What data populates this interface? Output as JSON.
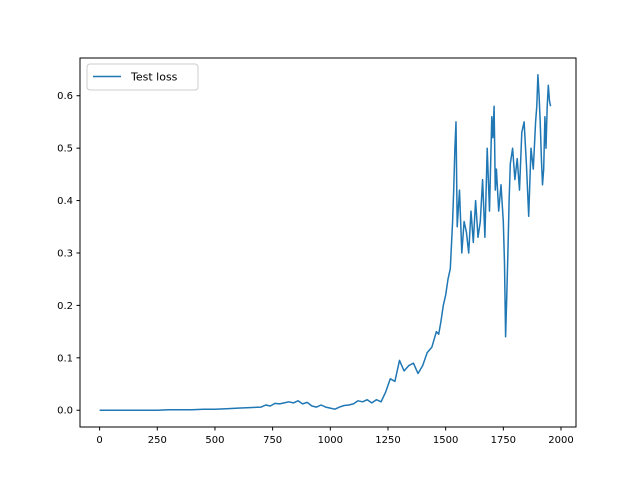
{
  "chart_data": {
    "type": "line",
    "title": "",
    "xlabel": "",
    "ylabel": "",
    "xlim": [
      -85,
      2065
    ],
    "ylim": [
      -0.032,
      0.672
    ],
    "xticks": [
      0,
      250,
      500,
      750,
      1000,
      1250,
      1500,
      1750,
      2000
    ],
    "yticks": [
      0.0,
      0.1,
      0.2,
      0.3,
      0.4,
      0.5,
      0.6
    ],
    "xtick_labels": [
      "0",
      "250",
      "500",
      "750",
      "1000",
      "1250",
      "1500",
      "1750",
      "2000"
    ],
    "ytick_labels": [
      "0.0",
      "0.1",
      "0.2",
      "0.3",
      "0.4",
      "0.5",
      "0.6"
    ],
    "grid": false,
    "legend": {
      "position": "upper-left"
    },
    "series": [
      {
        "name": "Test loss",
        "color": "#1f77b4",
        "x": [
          0,
          50,
          100,
          150,
          200,
          250,
          300,
          350,
          400,
          450,
          500,
          550,
          600,
          650,
          700,
          720,
          740,
          760,
          780,
          800,
          820,
          840,
          860,
          880,
          900,
          920,
          940,
          960,
          980,
          1000,
          1020,
          1040,
          1060,
          1080,
          1100,
          1120,
          1140,
          1160,
          1180,
          1200,
          1220,
          1240,
          1260,
          1280,
          1300,
          1320,
          1340,
          1360,
          1380,
          1400,
          1420,
          1440,
          1460,
          1470,
          1480,
          1490,
          1500,
          1510,
          1520,
          1530,
          1535,
          1540,
          1545,
          1550,
          1560,
          1570,
          1580,
          1590,
          1600,
          1610,
          1620,
          1630,
          1640,
          1650,
          1660,
          1670,
          1680,
          1690,
          1700,
          1705,
          1710,
          1715,
          1720,
          1730,
          1740,
          1750,
          1755,
          1760,
          1765,
          1770,
          1775,
          1780,
          1790,
          1800,
          1810,
          1820,
          1830,
          1840,
          1850,
          1860,
          1870,
          1880,
          1890,
          1895,
          1900,
          1905,
          1910,
          1915,
          1920,
          1925,
          1930,
          1935,
          1940,
          1945,
          1950,
          1955
        ],
        "y": [
          0.0,
          0.0,
          0.0,
          0.0,
          0.0,
          0.0,
          0.001,
          0.001,
          0.001,
          0.002,
          0.002,
          0.003,
          0.004,
          0.005,
          0.006,
          0.01,
          0.008,
          0.013,
          0.012,
          0.014,
          0.016,
          0.014,
          0.018,
          0.012,
          0.015,
          0.008,
          0.006,
          0.01,
          0.006,
          0.004,
          0.002,
          0.006,
          0.009,
          0.01,
          0.012,
          0.018,
          0.016,
          0.02,
          0.014,
          0.02,
          0.016,
          0.035,
          0.06,
          0.055,
          0.095,
          0.075,
          0.085,
          0.09,
          0.07,
          0.085,
          0.11,
          0.12,
          0.15,
          0.145,
          0.17,
          0.2,
          0.22,
          0.25,
          0.27,
          0.36,
          0.42,
          0.5,
          0.55,
          0.35,
          0.42,
          0.3,
          0.36,
          0.34,
          0.3,
          0.38,
          0.32,
          0.4,
          0.33,
          0.36,
          0.44,
          0.33,
          0.5,
          0.38,
          0.56,
          0.52,
          0.58,
          0.42,
          0.46,
          0.38,
          0.43,
          0.36,
          0.28,
          0.14,
          0.22,
          0.3,
          0.4,
          0.47,
          0.5,
          0.44,
          0.48,
          0.42,
          0.53,
          0.55,
          0.47,
          0.37,
          0.5,
          0.46,
          0.55,
          0.58,
          0.64,
          0.6,
          0.55,
          0.48,
          0.43,
          0.46,
          0.56,
          0.5,
          0.58,
          0.62,
          0.59,
          0.58
        ]
      }
    ]
  }
}
